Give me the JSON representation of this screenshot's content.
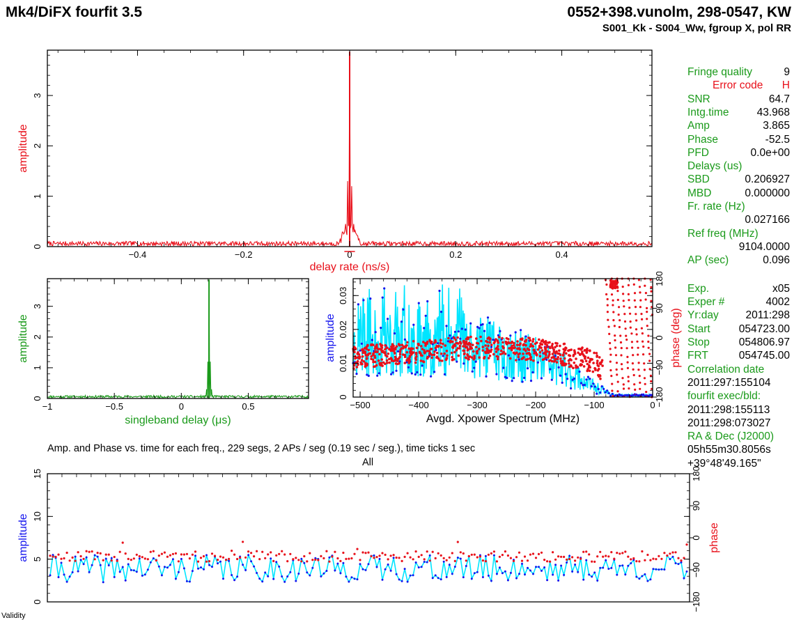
{
  "header": {
    "title_left": "Mk4/DiFX fourfit 3.5",
    "title_right": "0552+398.vunolm, 298-0547, KW",
    "subtitle": "S001_Kk - S004_Ww, fgroup X, pol RR"
  },
  "side_panel": [
    {
      "label": "Fringe quality",
      "value": "9",
      "color": "#1a9a1a",
      "indent": 0
    },
    {
      "label": "Error code",
      "value": "H",
      "color": "#e8101a",
      "indent": 36
    },
    {
      "label": "SNR",
      "value": "64.7",
      "color": "#1a9a1a",
      "indent": 0
    },
    {
      "label": "Intg.time",
      "value": "43.968",
      "color": "#1a9a1a",
      "indent": 0
    },
    {
      "label": "Amp",
      "value": "3.865",
      "color": "#1a9a1a",
      "indent": 0
    },
    {
      "label": "Phase",
      "value": "-52.5",
      "color": "#1a9a1a",
      "indent": 0
    },
    {
      "label": "PFD",
      "value": "0.0e+00",
      "color": "#1a9a1a",
      "indent": 0
    },
    {
      "label": "Delays (us)",
      "value": "",
      "color": "#1a9a1a",
      "indent": 0
    },
    {
      "label": "SBD",
      "value": "0.206927",
      "color": "#1a9a1a",
      "indent": 0
    },
    {
      "label": "MBD",
      "value": "0.000000",
      "color": "#1a9a1a",
      "indent": 0
    },
    {
      "label": "Fr. rate (Hz)",
      "value": "",
      "color": "#1a9a1a",
      "indent": 0
    },
    {
      "label": "",
      "value": "0.027166",
      "color": "#000000",
      "indent": 0
    },
    {
      "label": "Ref freq (MHz)",
      "value": "",
      "color": "#1a9a1a",
      "indent": 0
    },
    {
      "label": "",
      "value": "9104.0000",
      "color": "#000000",
      "indent": 0
    },
    {
      "label": "AP (sec)",
      "value": "0.096",
      "color": "#1a9a1a",
      "indent": 0
    },
    {
      "label": "",
      "value": "",
      "color": "#000000",
      "indent": 0
    },
    {
      "label": "Exp.",
      "value": "x05",
      "color": "#1a9a1a",
      "indent": 0
    },
    {
      "label": "Exper #",
      "value": "4002",
      "color": "#1a9a1a",
      "indent": 0
    },
    {
      "label": "Yr:day",
      "value": "2011:298",
      "color": "#1a9a1a",
      "indent": 0
    },
    {
      "label": "Start",
      "value": "054723.00",
      "color": "#1a9a1a",
      "indent": 0
    },
    {
      "label": "Stop",
      "value": "054806.97",
      "color": "#1a9a1a",
      "indent": 0
    },
    {
      "label": "FRT",
      "value": "054745.00",
      "color": "#1a9a1a",
      "indent": 0
    },
    {
      "label": "Correlation date",
      "value": "",
      "color": "#1a9a1a",
      "indent": 0
    },
    {
      "label": "2011:297:155104",
      "value": "",
      "color": "#000000",
      "indent": 0
    },
    {
      "label": "fourfit exec/bld:",
      "value": "",
      "color": "#1a9a1a",
      "indent": 0
    },
    {
      "label": "2011:298:155113",
      "value": "",
      "color": "#000000",
      "indent": 0
    },
    {
      "label": "2011:298:073027",
      "value": "",
      "color": "#000000",
      "indent": 0
    },
    {
      "label": "RA & Dec (J2000)",
      "value": "",
      "color": "#1a9a1a",
      "indent": 0
    },
    {
      "label": "05h55m30.8056s",
      "value": "",
      "color": "#000000",
      "indent": 0
    },
    {
      "label": "+39°48'49.165\"",
      "value": "",
      "color": "#000000",
      "indent": 0
    }
  ],
  "bottom_caption": "Amp. and Phase vs. time for each freq., 229 segs, 2 APs / seg (0.19 sec / seg.), time ticks 1 sec",
  "bottom_sublabel": "All",
  "footer_cut_label": "Validity",
  "colors": {
    "red": "#e8101a",
    "green": "#1a9a1a",
    "blue": "#1515ee",
    "cyan": "#00e5ff",
    "black": "#000000"
  },
  "chart_data": [
    {
      "id": "delay_rate",
      "type": "line",
      "xlabel": "delay rate (ns/s)",
      "ylabel": "amplitude",
      "xlim": [
        -0.57,
        0.57
      ],
      "ylim": [
        0,
        3.9
      ],
      "xticks": [
        -0.4,
        -0.2,
        0,
        0.2,
        0.4
      ],
      "xtick_labels": [
        "−0.4",
        "−0.2",
        "0",
        "0.2",
        "0.4"
      ],
      "yticks": [
        0,
        1,
        2,
        3
      ],
      "ytick_labels": [
        "0",
        "1",
        "2",
        "3"
      ],
      "color": "#e8101a",
      "noise_level": 0.1,
      "peaks": [
        [
          0.0,
          3.87
        ],
        [
          -0.004,
          1.3
        ],
        [
          0.004,
          1.2
        ],
        [
          -0.008,
          0.45
        ],
        [
          0.008,
          0.45
        ],
        [
          -0.012,
          0.25
        ],
        [
          0.012,
          0.25
        ]
      ]
    },
    {
      "id": "singleband_delay",
      "type": "line",
      "xlabel": "singleband delay (μs)",
      "ylabel": "amplitude",
      "xlim": [
        -1,
        0.95
      ],
      "ylim": [
        0,
        3.9
      ],
      "xticks": [
        -1,
        -0.5,
        0,
        0.5
      ],
      "xtick_labels": [
        "−1",
        "−0.5",
        "0",
        "0.5"
      ],
      "yticks": [
        0,
        1,
        2,
        3
      ],
      "ytick_labels": [
        "0",
        "1",
        "2",
        "3"
      ],
      "color": "#1a9a1a",
      "noise_level": 0.1,
      "peaks": [
        [
          0.2069,
          3.87
        ],
        [
          0.197,
          1.2
        ],
        [
          0.217,
          1.2
        ],
        [
          0.187,
          0.3
        ],
        [
          0.227,
          0.3
        ]
      ]
    },
    {
      "id": "xpower_spectrum",
      "type": "line+scatter",
      "xlabel": "Avgd. Xpower Spectrum (MHz)",
      "ylabel": "amplitude",
      "y2label": "phase (deg)",
      "xlim": [
        -512,
        0
      ],
      "ylim": [
        0,
        0.035
      ],
      "y2lim": [
        -180,
        180
      ],
      "xticks": [
        -500,
        -400,
        -300,
        -200,
        -100,
        0
      ],
      "xtick_labels": [
        "−500",
        "−400",
        "−300",
        "−200",
        "−100",
        "0"
      ],
      "yticks": [
        0,
        0.01,
        0.02,
        0.03
      ],
      "ytick_labels": [
        "0",
        "0.01",
        "0.02",
        "0.03"
      ],
      "y2ticks": [
        -180,
        -90,
        0,
        90,
        180
      ],
      "y2tick_labels": [
        "−180",
        "−90",
        "0",
        "90",
        "180"
      ],
      "amplitude_envelope": {
        "x": [
          -512,
          -450,
          -400,
          -350,
          -300,
          -250,
          -200,
          -150,
          -100,
          -70,
          -60,
          0
        ],
        "y": [
          0.015,
          0.016,
          0.017,
          0.016,
          0.015,
          0.013,
          0.011,
          0.008,
          0.003,
          0.0008,
          0.0005,
          0.0005
        ]
      },
      "amplitude_color": "#00e5ff",
      "amplitude_marker_color": "#1515ee",
      "phase_color": "#e8101a",
      "phase_center": {
        "x": [
          -512,
          -400,
          -300,
          -200,
          -100,
          -80
        ],
        "y": [
          -60,
          -40,
          -30,
          -35,
          -70,
          -110
        ]
      },
      "phase_wrap_region": [
        -80,
        0
      ]
    },
    {
      "id": "amp_phase_vs_time",
      "type": "line+scatter",
      "xlabel": "",
      "ylabel": "amplitude",
      "y2label": "phase",
      "segments": 229,
      "ylim": [
        0,
        15
      ],
      "y2lim": [
        -180,
        180
      ],
      "yticks": [
        0,
        5,
        10,
        15
      ],
      "ytick_labels": [
        "0",
        "5",
        "10",
        "15"
      ],
      "y2ticks": [
        -180,
        -90,
        0,
        90,
        180
      ],
      "y2tick_labels": [
        "−180",
        "−90",
        "0",
        "90",
        "180"
      ],
      "amplitude_mean": 3.9,
      "amplitude_spread": 1.6,
      "phase_mean": -52.5,
      "phase_spread": 15,
      "amplitude_color": "#00e5ff",
      "amplitude_marker_color": "#1515ee",
      "phase_color": "#e8101a"
    }
  ]
}
